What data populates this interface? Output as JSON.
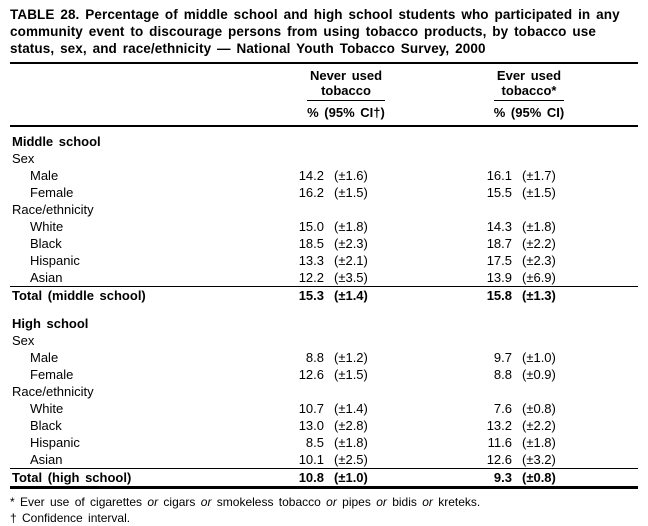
{
  "title": "TABLE 28. Percentage of middle school and high school students who participated in any community event to discourage persons from using tobacco products, by tobacco use status, sex, and race/ethnicity — National Youth Tobacco Survey, 2000",
  "columns": {
    "never_line1": "Never used",
    "never_line2": "tobacco",
    "never_sub": "% (95% CI†)",
    "ever_line1": "Ever used",
    "ever_line2": "tobacco*",
    "ever_sub": "% (95% CI)"
  },
  "rows": [
    {
      "label": "Middle school"
    },
    {
      "label": "Sex"
    },
    {
      "label": "Male",
      "never_pct": "14.2",
      "never_ci": "(±1.6)",
      "ever_pct": "16.1",
      "ever_ci": "(±1.7)"
    },
    {
      "label": "Female",
      "never_pct": "16.2",
      "never_ci": "(±1.5)",
      "ever_pct": "15.5",
      "ever_ci": "(±1.5)"
    },
    {
      "label": "Race/ethnicity"
    },
    {
      "label": "White",
      "never_pct": "15.0",
      "never_ci": "(±1.8)",
      "ever_pct": "14.3",
      "ever_ci": "(±1.8)"
    },
    {
      "label": "Black",
      "never_pct": "18.5",
      "never_ci": "(±2.3)",
      "ever_pct": "18.7",
      "ever_ci": "(±2.2)"
    },
    {
      "label": "Hispanic",
      "never_pct": "13.3",
      "never_ci": "(±2.1)",
      "ever_pct": "17.5",
      "ever_ci": "(±2.3)"
    },
    {
      "label": "Asian",
      "never_pct": "12.2",
      "never_ci": "(±3.5)",
      "ever_pct": "13.9",
      "ever_ci": "(±6.9)"
    },
    {
      "label": "Total (middle school)",
      "never_pct": "15.3",
      "never_ci": "(±1.4)",
      "ever_pct": "15.8",
      "ever_ci": "(±1.3)"
    },
    {
      "label": "High school"
    },
    {
      "label": "Sex"
    },
    {
      "label": "Male",
      "never_pct": "8.8",
      "never_ci": "(±1.2)",
      "ever_pct": "9.7",
      "ever_ci": "(±1.0)"
    },
    {
      "label": "Female",
      "never_pct": "12.6",
      "never_ci": "(±1.5)",
      "ever_pct": "8.8",
      "ever_ci": "(±0.9)"
    },
    {
      "label": "Race/ethnicity"
    },
    {
      "label": "White",
      "never_pct": "10.7",
      "never_ci": "(±1.4)",
      "ever_pct": "7.6",
      "ever_ci": "(±0.8)"
    },
    {
      "label": "Black",
      "never_pct": "13.0",
      "never_ci": "(±2.8)",
      "ever_pct": "13.2",
      "ever_ci": "(±2.2)"
    },
    {
      "label": "Hispanic",
      "never_pct": "8.5",
      "never_ci": "(±1.8)",
      "ever_pct": "11.6",
      "ever_ci": "(±1.8)"
    },
    {
      "label": "Asian",
      "never_pct": "10.1",
      "never_ci": "(±2.5)",
      "ever_pct": "12.6",
      "ever_ci": "(±3.2)"
    },
    {
      "label": "Total (high school)",
      "never_pct": "10.8",
      "never_ci": "(±1.0)",
      "ever_pct": "9.3",
      "ever_ci": "(±0.8)"
    }
  ],
  "footnotes": {
    "fn1_parts": {
      "a": "* Ever use of cigarettes ",
      "or1": "or",
      "b": " cigars ",
      "or2": "or",
      "c": " smokeless tobacco ",
      "or3": "or",
      "d": " pipes ",
      "or4": "or",
      "e": " bidis ",
      "or5": "or",
      "f": " kreteks."
    },
    "fn2": "† Confidence interval."
  }
}
